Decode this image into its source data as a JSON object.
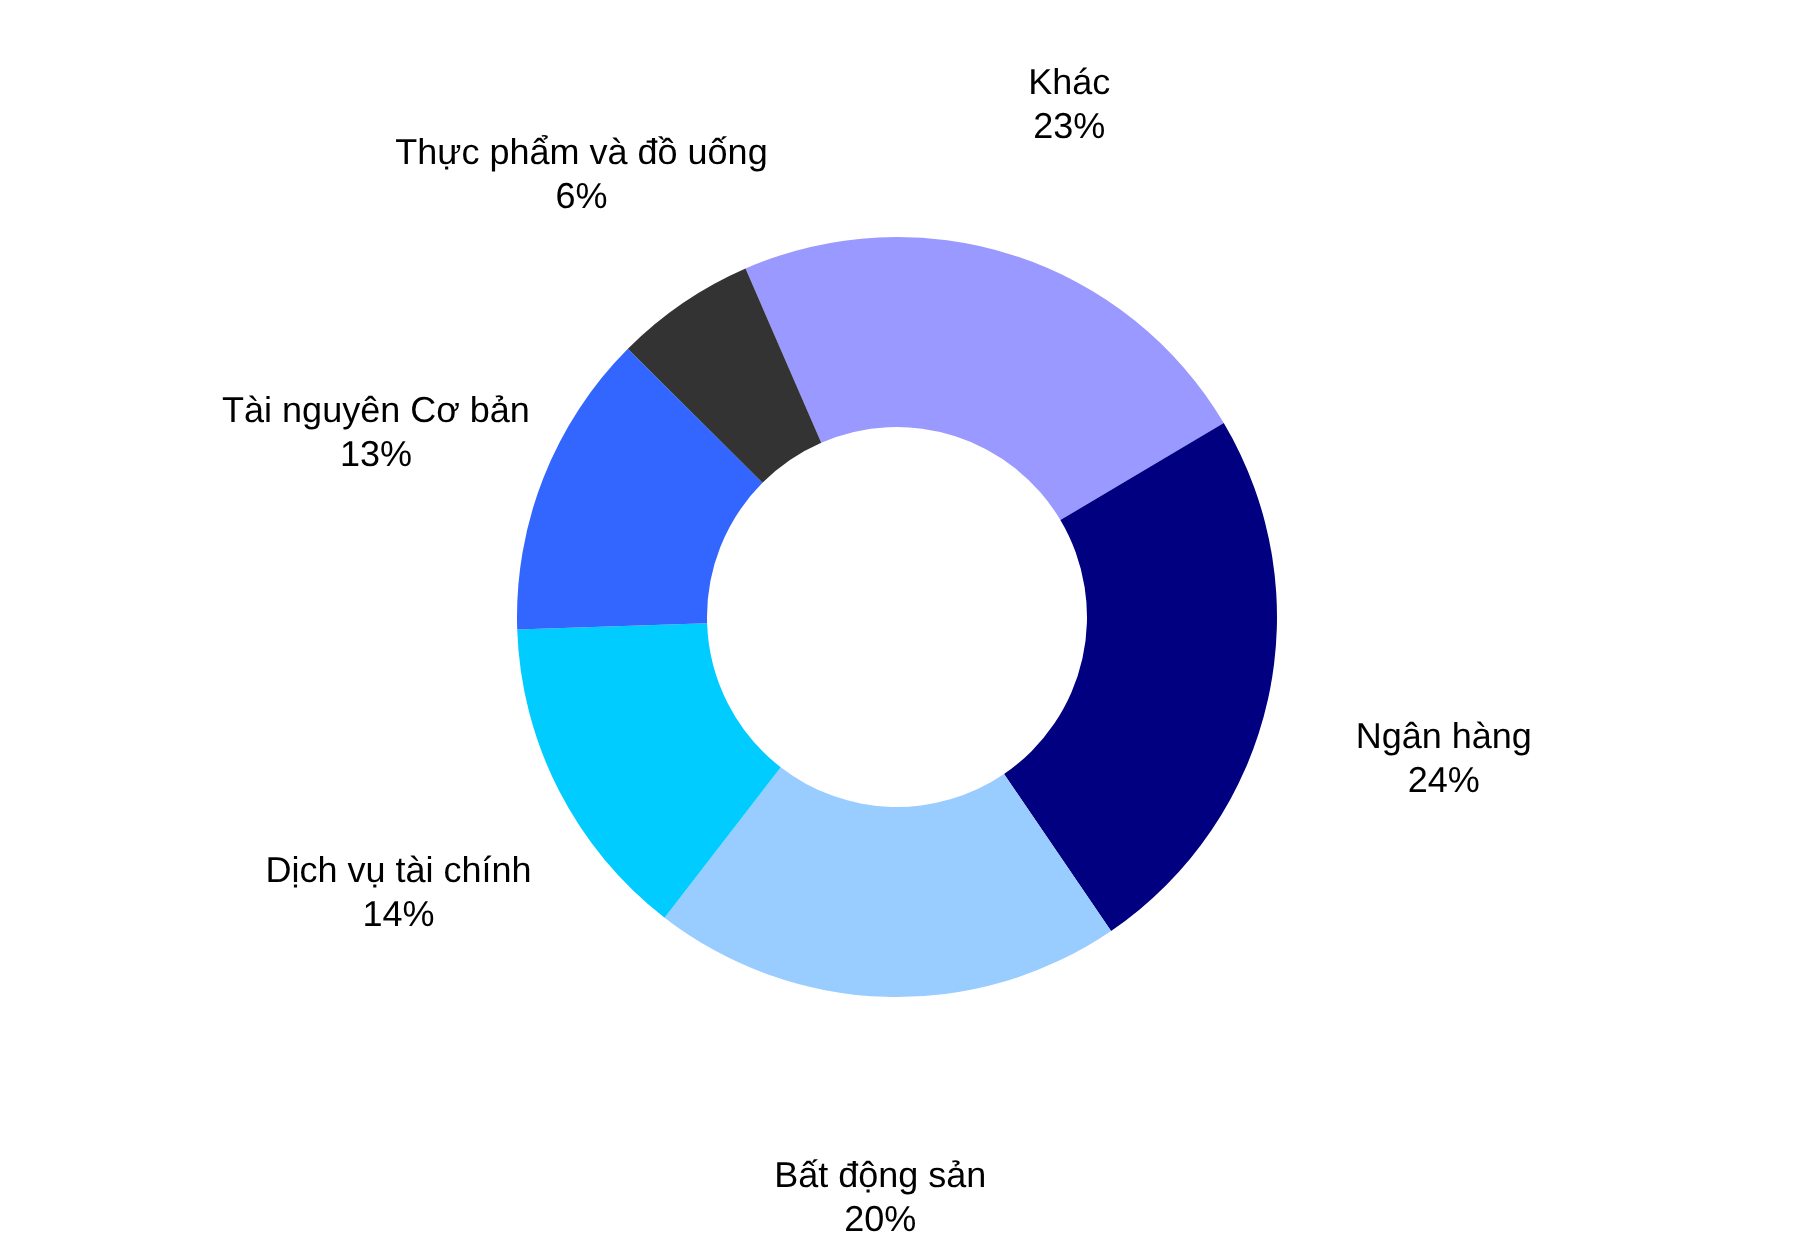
{
  "chart_data": {
    "type": "donut",
    "categories": [
      "Khác",
      "Ngân hàng",
      "Bất động sản",
      "Dịch vụ tài chính",
      "Tài nguyên Cơ bản",
      "Thực phẩm và đồ uống"
    ],
    "values": [
      23,
      24,
      20,
      14,
      13,
      6
    ],
    "colors": [
      "#9999ff",
      "#000080",
      "#99ccff",
      "#00ccff",
      "#3366ff",
      "#333333"
    ],
    "value_labels": [
      "23%",
      "24%",
      "20%",
      "14%",
      "13%",
      "6%"
    ]
  }
}
